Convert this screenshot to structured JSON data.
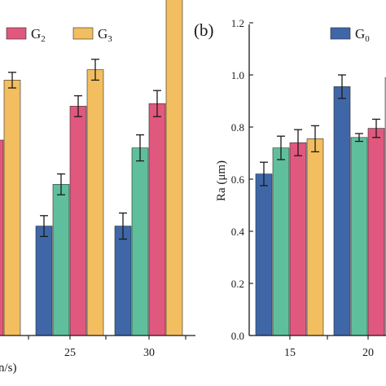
{
  "colors": {
    "G0": "#3f67a8",
    "G1": "#5fbf9c",
    "G2": "#e0587e",
    "G3": "#f2be5f"
  },
  "chart_data": [
    {
      "panel": "a",
      "type": "bar",
      "categories": [
        "",
        "25",
        "30"
      ],
      "series": [
        {
          "name": "",
          "color_key": "G0",
          "values": [
            null,
            0.42,
            0.42
          ],
          "errors": [
            null,
            0.04,
            0.05
          ]
        },
        {
          "name": "",
          "color_key": "G1",
          "values": [
            null,
            0.58,
            0.72
          ],
          "errors": [
            null,
            0.04,
            0.05
          ]
        },
        {
          "name": "G2",
          "color_key": "G2",
          "values": [
            0.75,
            0.88,
            0.89
          ],
          "errors": [
            null,
            0.04,
            0.05
          ]
        },
        {
          "name": "G3",
          "color_key": "G3",
          "values": [
            0.98,
            1.02,
            1.35
          ],
          "errors": [
            0.03,
            0.04,
            0.05
          ]
        }
      ],
      "xlabel_fragment": "n/s)",
      "legend": [
        {
          "label": "G",
          "sub": "2",
          "color_key": "G2"
        },
        {
          "label": "G",
          "sub": "3",
          "color_key": "G3"
        }
      ]
    },
    {
      "panel": "b",
      "panel_label": "(b)",
      "type": "bar",
      "ylabel": "Ra (μm)",
      "ylim": [
        0.0,
        1.2
      ],
      "yticks": [
        "0.0",
        "0.2",
        "0.4",
        "0.6",
        "0.8",
        "1.0",
        "1.2"
      ],
      "categories": [
        "15",
        "20"
      ],
      "series": [
        {
          "name": "G0",
          "color_key": "G0",
          "values": [
            0.62,
            0.955
          ],
          "errors": [
            0.045,
            0.045
          ]
        },
        {
          "name": "",
          "color_key": "G1",
          "values": [
            0.72,
            0.76
          ],
          "errors": [
            0.045,
            0.015
          ]
        },
        {
          "name": "",
          "color_key": "G2",
          "values": [
            0.74,
            0.795
          ],
          "errors": [
            0.05,
            0.035
          ]
        },
        {
          "name": "",
          "color_key": "G3",
          "values": [
            0.755,
            0.99
          ],
          "errors": [
            0.05,
            null
          ]
        }
      ],
      "legend": [
        {
          "label": "G",
          "sub": "0",
          "color_key": "G0"
        }
      ]
    }
  ]
}
